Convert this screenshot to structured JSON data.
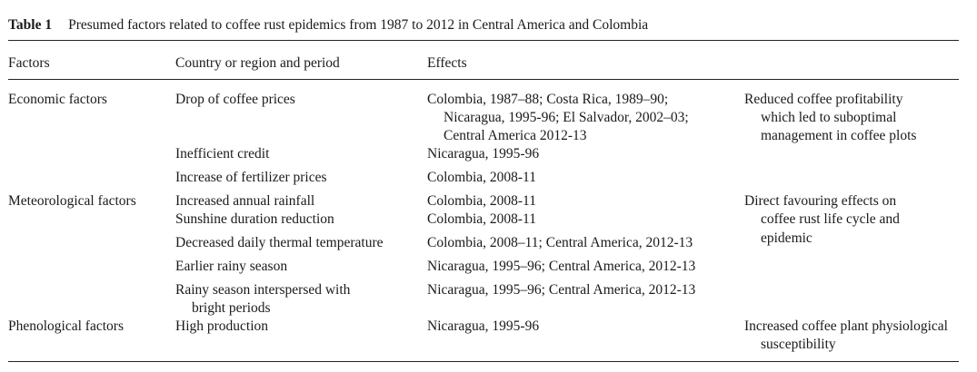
{
  "caption": {
    "label": "Table 1",
    "title": "Presumed factors related to coffee rust epidemics from 1987 to 2012 in Central America and Colombia"
  },
  "headers": {
    "factors": "Factors",
    "country": "Country or region and period",
    "effects": "Effects"
  },
  "groups": {
    "economic": {
      "label": "Economic factors",
      "drop_prices": {
        "factor": "Drop of coffee prices",
        "where": [
          "Colombia, 1987–88; Costa Rica, 1989–90;",
          "Nicaragua, 1995-96; El Salvador, 2002–03;",
          "Central America 2012-13"
        ]
      },
      "credit": {
        "factor": "Inefficient credit",
        "where": "Nicaragua, 1995-96"
      },
      "fertilizer": {
        "factor": "Increase of fertilizer prices",
        "where": "Colombia, 2008-11"
      },
      "effect": [
        "Reduced coffee profitability",
        "which led to suboptimal",
        "management in coffee plots"
      ]
    },
    "meteorological": {
      "label": "Meteorological factors",
      "rainfall": {
        "factor": "Increased annual rainfall",
        "where": "Colombia, 2008-11"
      },
      "sunshine": {
        "factor": "Sunshine duration reduction",
        "where": "Colombia, 2008-11"
      },
      "thermal": {
        "factor": "Decreased daily thermal temperature",
        "where": "Colombia, 2008–11; Central America, 2012-13"
      },
      "rainy_season": {
        "factor": "Earlier rainy season",
        "where": "Nicaragua, 1995–96; Central America, 2012-13"
      },
      "interspersed": {
        "factor": [
          "Rainy season interspersed with",
          "bright periods"
        ],
        "where": "Nicaragua, 1995–96; Central America, 2012-13"
      },
      "effect": [
        "Direct favouring effects on",
        "coffee rust life cycle and",
        "epidemic"
      ]
    },
    "phenological": {
      "label": "Phenological factors",
      "production": {
        "factor": "High production",
        "where": "Nicaragua, 1995-96"
      },
      "effect": [
        "Increased coffee plant physiological",
        "susceptibility"
      ]
    }
  }
}
